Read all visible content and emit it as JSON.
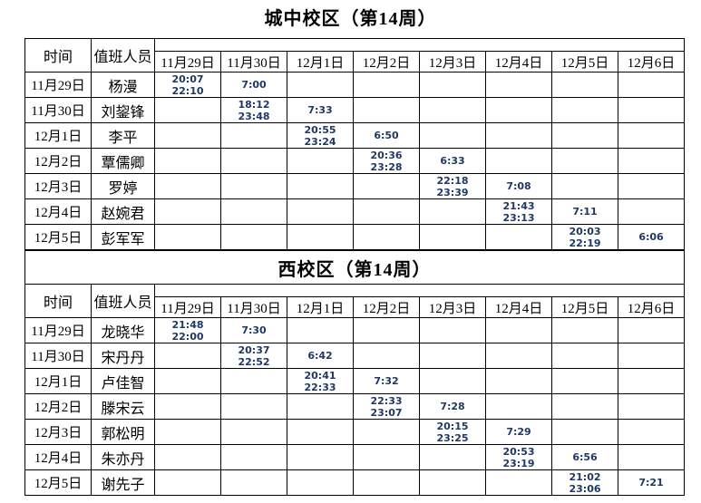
{
  "styles": {
    "time_text_color": "#1F3864",
    "border_color": "#000000",
    "text_color": "#000000",
    "background_color": "#FFFFFF"
  },
  "tables": [
    {
      "title": "城中校区（第14周）",
      "header": {
        "time_label": "时间",
        "staff_label": "值班人员"
      },
      "date_columns": [
        "11月29日",
        "11月30日",
        "12月1日",
        "12月2日",
        "12月3日",
        "12月4日",
        "12月5日",
        "12月6日"
      ],
      "rows": [
        {
          "date": "11月29日",
          "name": "杨漫",
          "times": [
            [
              "20:07",
              "22:10"
            ],
            [
              "7:00"
            ],
            [],
            [],
            [],
            [],
            [],
            []
          ]
        },
        {
          "date": "11月30日",
          "name": "刘鋆锋",
          "times": [
            [],
            [
              "18:12",
              "23:48"
            ],
            [
              "7:33"
            ],
            [],
            [],
            [],
            [],
            []
          ]
        },
        {
          "date": "12月1日",
          "name": "李平",
          "times": [
            [],
            [],
            [
              "20:55",
              "23:24"
            ],
            [
              "6:50"
            ],
            [],
            [],
            [],
            []
          ]
        },
        {
          "date": "12月2日",
          "name": "覃儒卿",
          "times": [
            [],
            [],
            [],
            [
              "20:36",
              "23:28"
            ],
            [
              "6:33"
            ],
            [],
            [],
            []
          ]
        },
        {
          "date": "12月3日",
          "name": "罗婷",
          "times": [
            [],
            [],
            [],
            [],
            [
              "22:18",
              "23:39"
            ],
            [
              "7:08"
            ],
            [],
            []
          ]
        },
        {
          "date": "12月4日",
          "name": "赵婉君",
          "times": [
            [],
            [],
            [],
            [],
            [],
            [
              "21:43",
              "23:13"
            ],
            [
              "7:11"
            ],
            []
          ]
        },
        {
          "date": "12月5日",
          "name": "彭军军",
          "times": [
            [],
            [],
            [],
            [],
            [],
            [],
            [
              "20:03",
              "22:19"
            ],
            [
              "6:06"
            ]
          ]
        }
      ]
    },
    {
      "title": "西校区（第14周）",
      "header": {
        "time_label": "时间",
        "staff_label": "值班人员"
      },
      "date_columns": [
        "11月29日",
        "11月30日",
        "12月1日",
        "12月2日",
        "12月3日",
        "12月4日",
        "12月5日",
        "12月6日"
      ],
      "rows": [
        {
          "date": "11月29日",
          "name": "龙晓华",
          "times": [
            [
              "21:48",
              "22:00"
            ],
            [
              "7:30"
            ],
            [],
            [],
            [],
            [],
            [],
            []
          ]
        },
        {
          "date": "11月30日",
          "name": "宋丹丹",
          "times": [
            [],
            [
              "20:37",
              "22:52"
            ],
            [
              "6:42"
            ],
            [],
            [],
            [],
            [],
            []
          ]
        },
        {
          "date": "12月1日",
          "name": "卢佳智",
          "times": [
            [],
            [],
            [
              "20:41",
              "22:33"
            ],
            [
              "7:32"
            ],
            [],
            [],
            [],
            []
          ]
        },
        {
          "date": "12月2日",
          "name": "滕宋云",
          "times": [
            [],
            [],
            [],
            [
              "22:33",
              "23:07"
            ],
            [
              "7:28"
            ],
            [],
            [],
            []
          ]
        },
        {
          "date": "12月3日",
          "name": "郭松明",
          "times": [
            [],
            [],
            [],
            [],
            [
              "20:15",
              "23:25"
            ],
            [
              "7:29"
            ],
            [],
            []
          ]
        },
        {
          "date": "12月4日",
          "name": "朱亦丹",
          "times": [
            [],
            [],
            [],
            [],
            [],
            [
              "20:53",
              "23:19"
            ],
            [
              "6:56"
            ],
            []
          ]
        },
        {
          "date": "12月5日",
          "name": "谢先子",
          "times": [
            [],
            [],
            [],
            [],
            [],
            [],
            [
              "21:02",
              "23:06"
            ],
            [
              "7:21"
            ]
          ]
        }
      ]
    }
  ]
}
